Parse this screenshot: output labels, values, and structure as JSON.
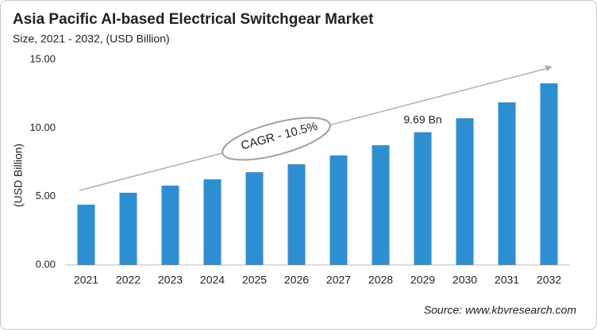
{
  "chart_data": {
    "type": "bar",
    "title": "Asia Pacific AI-based Electrical Switchgear Market",
    "subtitle": "Size, 2021 - 2032, (USD Billion)",
    "y_label": "(USD Billion)",
    "annotation": "CAGR - 10.5%",
    "source": "Source: www.kbvresearch.com",
    "categories": [
      "2021",
      "2022",
      "2023",
      "2024",
      "2025",
      "2026",
      "2027",
      "2028",
      "2029",
      "2030",
      "2031",
      "2032"
    ],
    "values": [
      4.4,
      5.27,
      5.79,
      6.25,
      6.77,
      7.35,
      7.99,
      8.74,
      9.69,
      10.71,
      11.87,
      13.26
    ],
    "value_labels": [
      null,
      null,
      null,
      null,
      null,
      null,
      null,
      null,
      "9.69 Bn",
      null,
      null,
      null
    ],
    "color": "#2b8fd1",
    "ylim": [
      0,
      15
    ],
    "yticks": [
      {
        "value": 0,
        "label": "0.00"
      },
      {
        "value": 5,
        "label": "5.00"
      },
      {
        "value": 10,
        "label": "10.00"
      },
      {
        "value": 15,
        "label": "15.00"
      }
    ],
    "grid": false
  }
}
